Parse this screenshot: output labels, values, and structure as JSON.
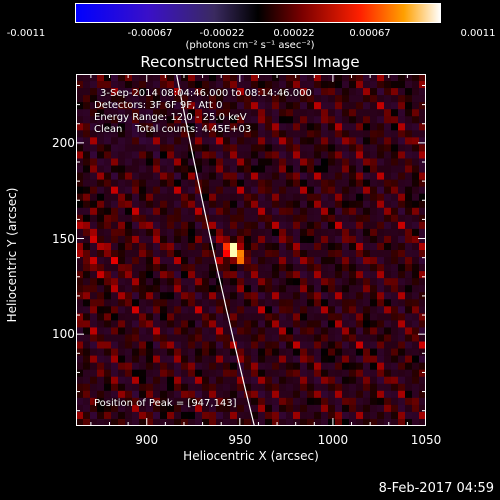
{
  "chart_data": {
    "type": "heatmap",
    "title": "Reconstructed RHESSI Image",
    "xlabel": "Heliocentric X (arcsec)",
    "ylabel": "Heliocentric Y (arcsec)",
    "xlim": [
      862,
      1050
    ],
    "ylim": [
      52,
      236
    ],
    "xticks": [
      "900",
      "950",
      "1000",
      "1050"
    ],
    "xtick_values": [
      900,
      950,
      1000,
      1050
    ],
    "yticks": [
      "100",
      "150",
      "200"
    ],
    "ytick_values": [
      100,
      150,
      200
    ],
    "peak": {
      "x": 947,
      "y": 143
    },
    "colorbar": {
      "ticks": [
        "-0.0011",
        "-0.00067",
        "-0.00022",
        "0.00022",
        "0.00067",
        "0.0011"
      ],
      "tick_values": [
        -0.0011,
        -0.00067,
        -0.00022,
        0.00022,
        0.00067,
        0.0011
      ],
      "range": [
        -0.0011,
        0.0011
      ],
      "units": "(photons cm⁻² s⁻¹ asec⁻²)"
    },
    "grid": false
  },
  "info": {
    "time": "3-Sep-2014 08:04:46.000 to 08:14:46.000",
    "detectors": "Detectors: 3F 6F 9F, Att 0",
    "energy": "Energy Range: 12.0 - 25.0 keV",
    "clean": "Clean    Total counts: 4.45E+03",
    "peak_text": "Position of Peak = [947,143]"
  },
  "footer": "8-Feb-2017 04:59",
  "colors": {
    "background": "#000000",
    "limb": "#ffffff",
    "peak": "#ffff70"
  }
}
